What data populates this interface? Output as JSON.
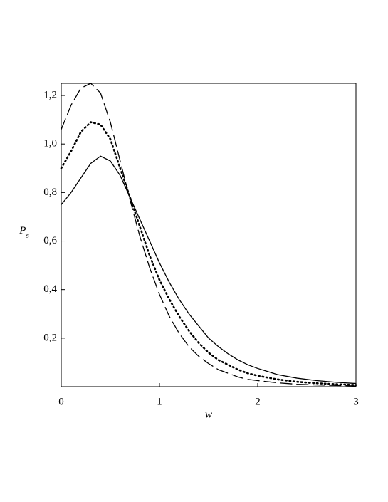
{
  "chart_data": {
    "type": "line",
    "xlabel": "w",
    "ylabel": "P",
    "ylabel_sub": "s",
    "x": [
      0,
      0.1,
      0.2,
      0.3,
      0.4,
      0.5,
      0.6,
      0.7,
      0.8,
      0.9,
      1.0,
      1.1,
      1.2,
      1.3,
      1.4,
      1.5,
      1.6,
      1.7,
      1.8,
      1.9,
      2.0,
      2.2,
      2.4,
      2.6,
      2.8,
      3.0
    ],
    "series": [
      {
        "color": "#000000",
        "dash": "solid",
        "values": [
          0.75,
          0.8,
          0.86,
          0.92,
          0.95,
          0.93,
          0.87,
          0.78,
          0.69,
          0.6,
          0.51,
          0.43,
          0.36,
          0.3,
          0.25,
          0.2,
          0.165,
          0.135,
          0.11,
          0.09,
          0.075,
          0.05,
          0.035,
          0.025,
          0.018,
          0.013
        ]
      },
      {
        "color": "#000000",
        "dash": "dotted",
        "values": [
          0.9,
          0.97,
          1.05,
          1.09,
          1.08,
          1.02,
          0.9,
          0.78,
          0.66,
          0.54,
          0.44,
          0.36,
          0.29,
          0.23,
          0.18,
          0.14,
          0.11,
          0.09,
          0.07,
          0.055,
          0.045,
          0.03,
          0.02,
          0.014,
          0.01,
          0.007
        ]
      },
      {
        "color": "#000000",
        "dash": "dashed",
        "values": [
          1.06,
          1.16,
          1.23,
          1.25,
          1.21,
          1.09,
          0.93,
          0.77,
          0.62,
          0.49,
          0.38,
          0.29,
          0.22,
          0.165,
          0.125,
          0.095,
          0.07,
          0.055,
          0.04,
          0.03,
          0.025,
          0.016,
          0.01,
          0.007,
          0.005,
          0.003
        ]
      }
    ],
    "xlim": [
      0,
      3
    ],
    "xticks": [
      0,
      1,
      2,
      3
    ],
    "ylim": [
      0,
      1.25
    ],
    "yticks": [
      {
        "value": 0.2,
        "label": "0,2"
      },
      {
        "value": 0.4,
        "label": "0,4"
      },
      {
        "value": 0.6,
        "label": "0,6"
      },
      {
        "value": 0.8,
        "label": "0,8"
      },
      {
        "value": 1.0,
        "label": "1,0"
      },
      {
        "value": 1.2,
        "label": "1,2"
      }
    ],
    "grid": false
  }
}
